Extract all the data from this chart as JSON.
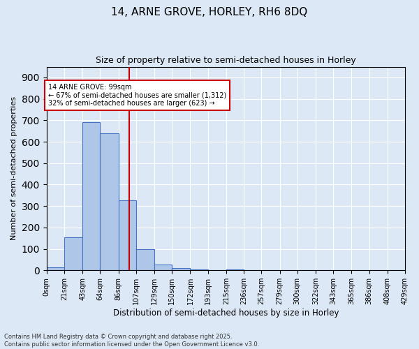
{
  "title": "14, ARNE GROVE, HORLEY, RH6 8DQ",
  "subtitle": "Size of property relative to semi-detached houses in Horley",
  "xlabel": "Distribution of semi-detached houses by size in Horley",
  "ylabel": "Number of semi-detached properties",
  "bin_edges": [
    0,
    21,
    43,
    64,
    86,
    107,
    129,
    150,
    172,
    193,
    215,
    236,
    257,
    279,
    300,
    322,
    343,
    365,
    386,
    408,
    429
  ],
  "bar_heights": [
    15,
    155,
    690,
    640,
    325,
    98,
    28,
    10,
    5,
    0,
    5,
    0,
    0,
    0,
    0,
    0,
    0,
    0,
    0,
    0
  ],
  "bar_color": "#aec6e8",
  "bar_edge_color": "#4472c4",
  "property_value": 99,
  "vline_color": "#cc0000",
  "annotation_text": "14 ARNE GROVE: 99sqm\n← 67% of semi-detached houses are smaller (1,312)\n32% of semi-detached houses are larger (623) →",
  "annotation_box_color": "#ffffff",
  "annotation_edge_color": "#cc0000",
  "ylim": [
    0,
    950
  ],
  "yticks": [
    0,
    100,
    200,
    300,
    400,
    500,
    600,
    700,
    800,
    900
  ],
  "tick_labels": [
    "0sqm",
    "21sqm",
    "43sqm",
    "64sqm",
    "86sqm",
    "107sqm",
    "129sqm",
    "150sqm",
    "172sqm",
    "193sqm",
    "215sqm",
    "236sqm",
    "257sqm",
    "279sqm",
    "300sqm",
    "322sqm",
    "343sqm",
    "365sqm",
    "386sqm",
    "408sqm",
    "429sqm"
  ],
  "footer_line1": "Contains HM Land Registry data © Crown copyright and database right 2025.",
  "footer_line2": "Contains public sector information licensed under the Open Government Licence v3.0.",
  "background_color": "#dce8f5",
  "plot_background_color": "#dce8f5"
}
